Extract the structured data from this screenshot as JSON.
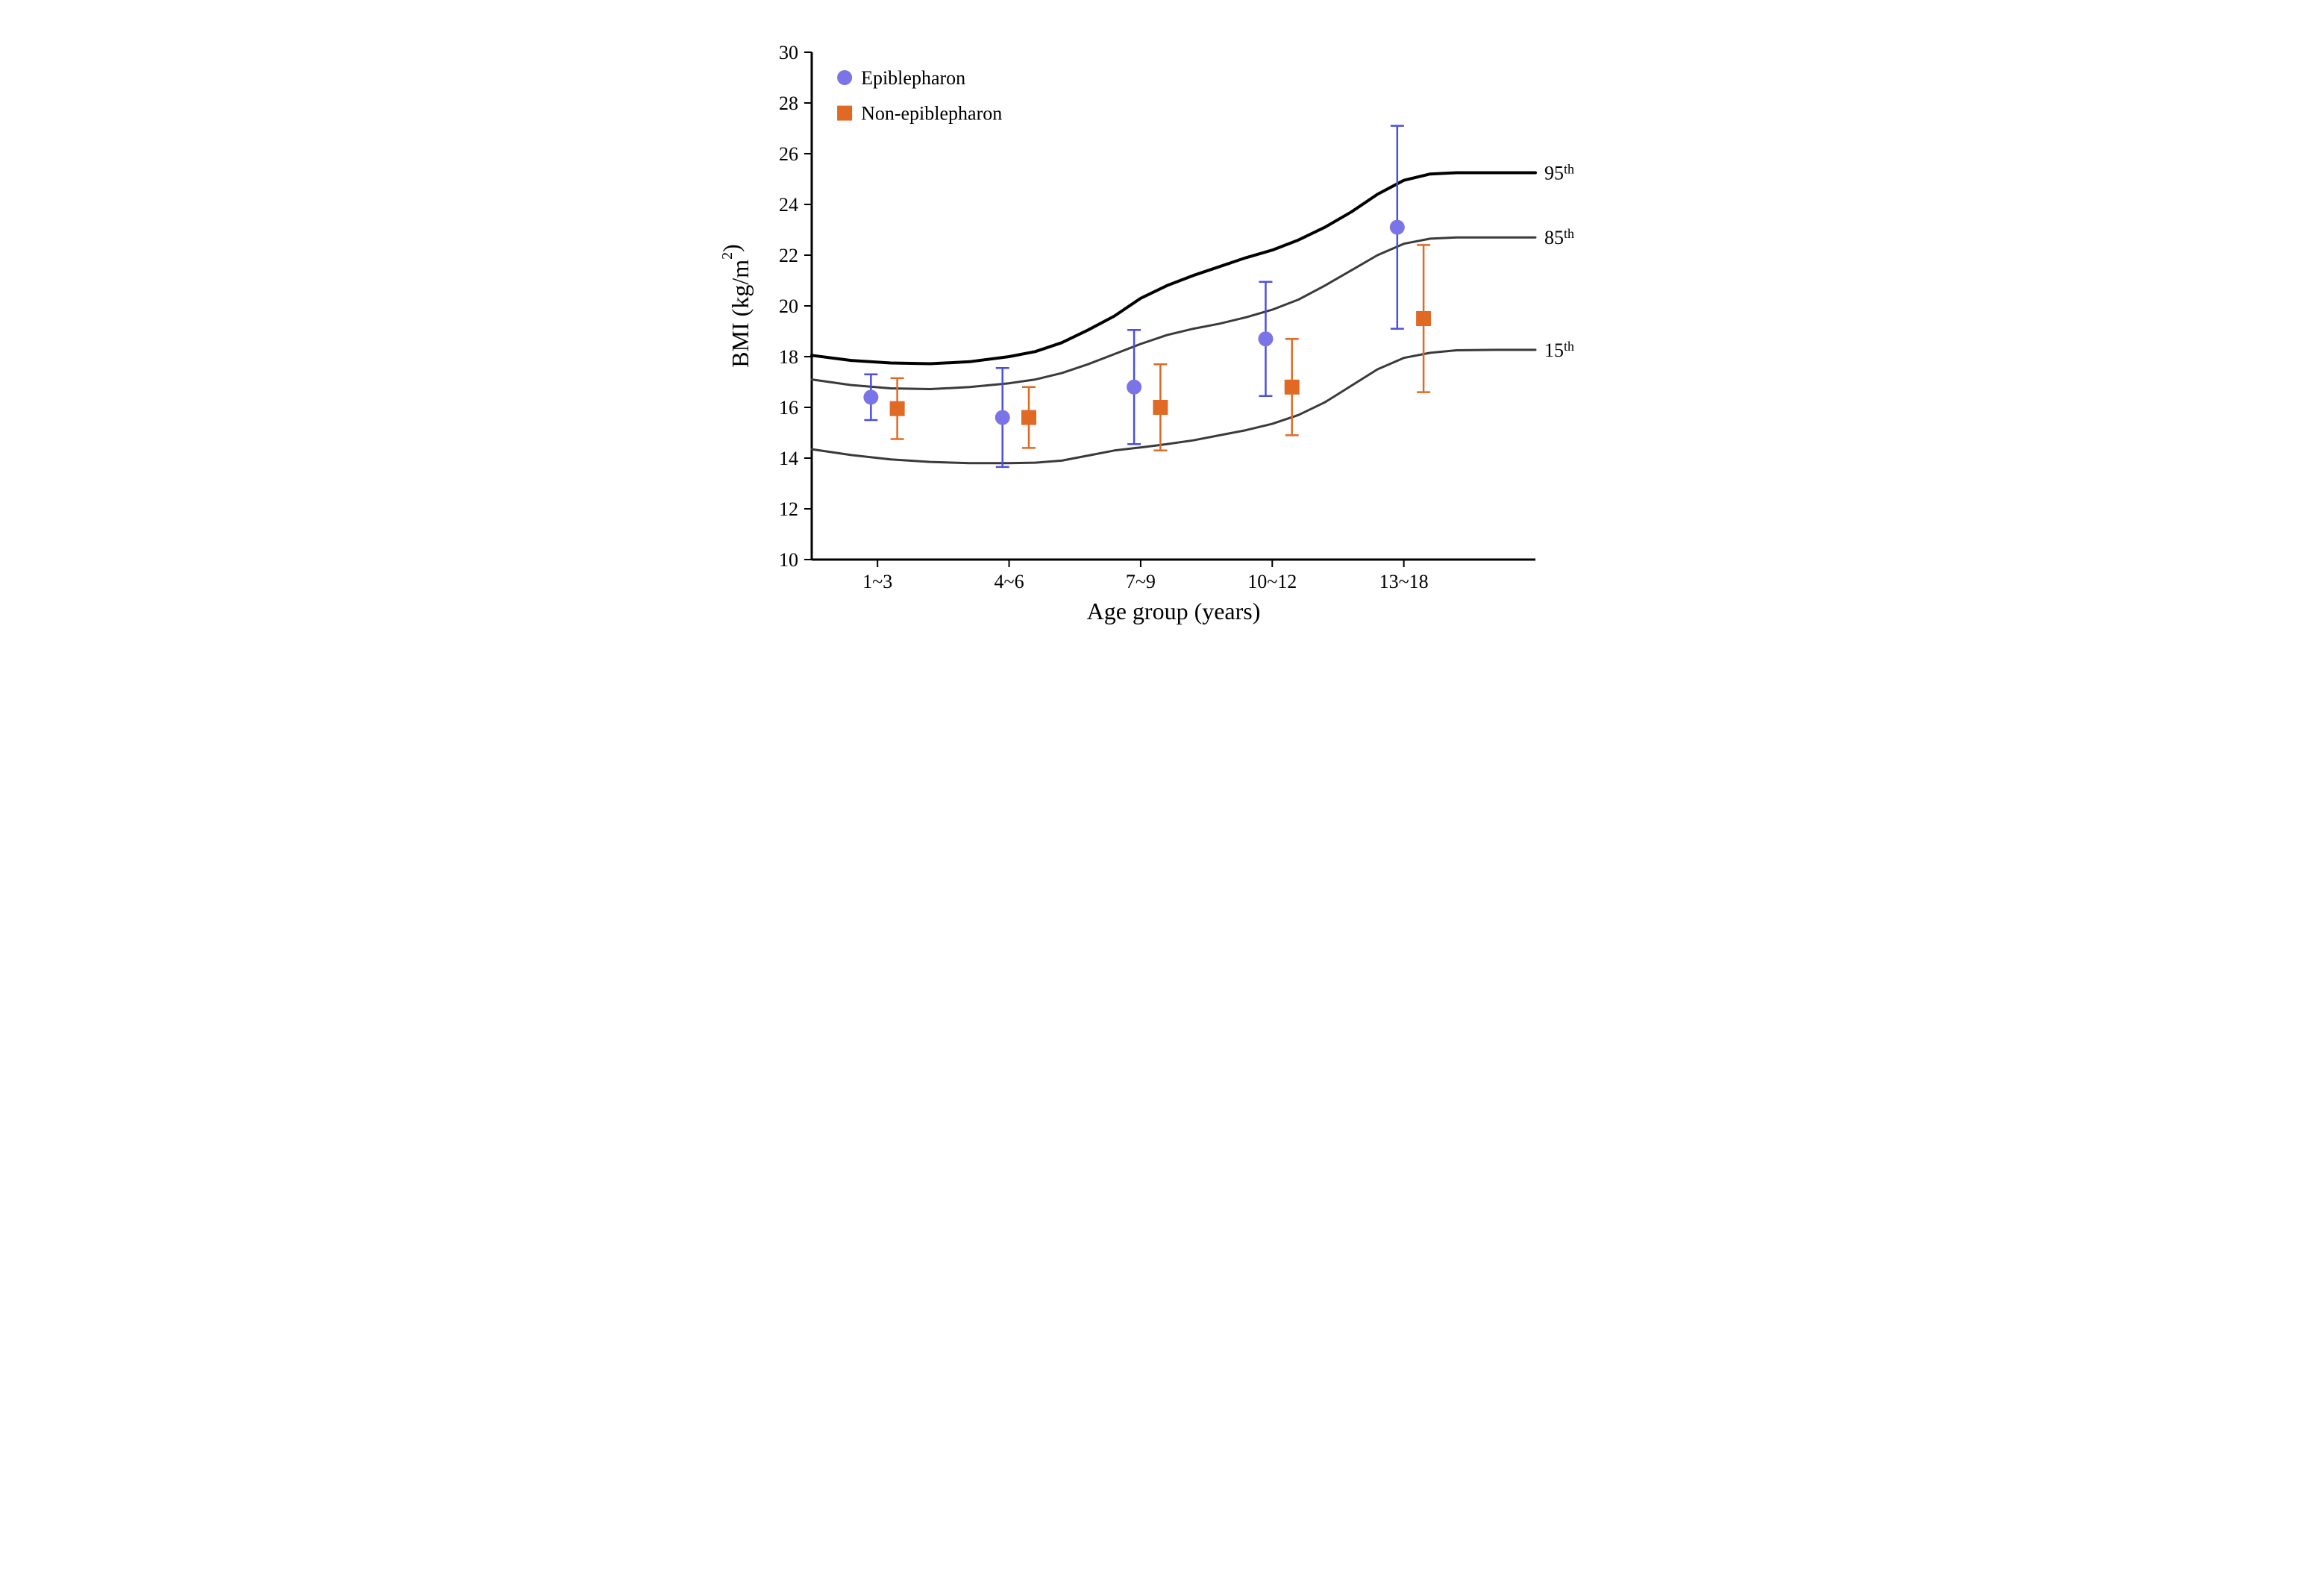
{
  "chart": {
    "type": "errorbar-with-percentile-curves",
    "background_color": "#ffffff",
    "axis_color": "#000000",
    "axis_linewidth": 3,
    "tick_length": 10,
    "font_family": "Times New Roman",
    "ylabel": "BMI (kg/m²)",
    "ylabel_html": "BMI (kg/m<sup>2</sup>)",
    "xlabel": "Age group (years)",
    "label_fontsize": 32,
    "tick_fontsize": 26,
    "ylim": [
      10,
      30
    ],
    "ytick_step": 2,
    "yticks": [
      10,
      12,
      14,
      16,
      18,
      20,
      22,
      24,
      26,
      28,
      30
    ],
    "x_categories": [
      "1~3",
      "4~6",
      "7~9",
      "10~12",
      "13~18"
    ],
    "x_positions": [
      1,
      2,
      3,
      4,
      5
    ],
    "xlim": [
      0.5,
      6.0
    ],
    "legend": {
      "x": 0.75,
      "items": [
        {
          "label": "Epiblepharon",
          "marker": "circle",
          "color": "#7b74e6"
        },
        {
          "label": "Non-epiblepharon",
          "marker": "square",
          "color": "#e06a24"
        }
      ]
    },
    "series": [
      {
        "name": "Epiblepharon",
        "marker": "circle",
        "marker_size": 10,
        "color": "#7b74e6",
        "line_color": "#4a4fe0",
        "linewidth": 2.5,
        "x_offset": -0.05,
        "points": [
          {
            "x": 1,
            "y": 16.4,
            "err": 0.9
          },
          {
            "x": 2,
            "y": 15.6,
            "err": 1.95
          },
          {
            "x": 3,
            "y": 16.8,
            "err": 2.25
          },
          {
            "x": 4,
            "y": 18.7,
            "err": 2.25
          },
          {
            "x": 5,
            "y": 23.1,
            "err": 4.0
          }
        ]
      },
      {
        "name": "Non-epiblepharon",
        "marker": "square",
        "marker_size": 10,
        "color": "#e06a24",
        "line_color": "#e06a24",
        "linewidth": 2.5,
        "x_offset": 0.15,
        "points": [
          {
            "x": 1,
            "y": 15.95,
            "err": 1.2
          },
          {
            "x": 2,
            "y": 15.6,
            "err": 1.2
          },
          {
            "x": 3,
            "y": 16.0,
            "err": 1.7
          },
          {
            "x": 4,
            "y": 16.8,
            "err": 1.9
          },
          {
            "x": 5,
            "y": 19.5,
            "err": 2.9
          }
        ]
      }
    ],
    "percentile_curves": [
      {
        "label": "95th",
        "label_raw": "95",
        "label_suffix": "th",
        "color": "#000000",
        "linewidth": 4,
        "points": [
          {
            "x": 0.5,
            "y": 18.05
          },
          {
            "x": 0.8,
            "y": 17.85
          },
          {
            "x": 1.1,
            "y": 17.75
          },
          {
            "x": 1.4,
            "y": 17.72
          },
          {
            "x": 1.7,
            "y": 17.8
          },
          {
            "x": 2.0,
            "y": 18.0
          },
          {
            "x": 2.2,
            "y": 18.2
          },
          {
            "x": 2.4,
            "y": 18.55
          },
          {
            "x": 2.6,
            "y": 19.05
          },
          {
            "x": 2.8,
            "y": 19.6
          },
          {
            "x": 3.0,
            "y": 20.3
          },
          {
            "x": 3.2,
            "y": 20.8
          },
          {
            "x": 3.4,
            "y": 21.2
          },
          {
            "x": 3.6,
            "y": 21.55
          },
          {
            "x": 3.8,
            "y": 21.9
          },
          {
            "x": 4.0,
            "y": 22.2
          },
          {
            "x": 4.2,
            "y": 22.6
          },
          {
            "x": 4.4,
            "y": 23.1
          },
          {
            "x": 4.6,
            "y": 23.7
          },
          {
            "x": 4.8,
            "y": 24.4
          },
          {
            "x": 5.0,
            "y": 24.95
          },
          {
            "x": 5.2,
            "y": 25.2
          },
          {
            "x": 5.4,
            "y": 25.25
          },
          {
            "x": 5.7,
            "y": 25.25
          },
          {
            "x": 6.0,
            "y": 25.25
          }
        ]
      },
      {
        "label": "85th",
        "label_raw": "85",
        "label_suffix": "th",
        "color": "#3a3a3a",
        "linewidth": 3,
        "points": [
          {
            "x": 0.5,
            "y": 17.1
          },
          {
            "x": 0.8,
            "y": 16.88
          },
          {
            "x": 1.1,
            "y": 16.75
          },
          {
            "x": 1.4,
            "y": 16.72
          },
          {
            "x": 1.7,
            "y": 16.8
          },
          {
            "x": 2.0,
            "y": 16.95
          },
          {
            "x": 2.2,
            "y": 17.1
          },
          {
            "x": 2.4,
            "y": 17.35
          },
          {
            "x": 2.6,
            "y": 17.7
          },
          {
            "x": 2.8,
            "y": 18.1
          },
          {
            "x": 3.0,
            "y": 18.5
          },
          {
            "x": 3.2,
            "y": 18.85
          },
          {
            "x": 3.4,
            "y": 19.1
          },
          {
            "x": 3.6,
            "y": 19.3
          },
          {
            "x": 3.8,
            "y": 19.55
          },
          {
            "x": 4.0,
            "y": 19.85
          },
          {
            "x": 4.2,
            "y": 20.25
          },
          {
            "x": 4.4,
            "y": 20.8
          },
          {
            "x": 4.6,
            "y": 21.4
          },
          {
            "x": 4.8,
            "y": 22.0
          },
          {
            "x": 5.0,
            "y": 22.45
          },
          {
            "x": 5.2,
            "y": 22.65
          },
          {
            "x": 5.4,
            "y": 22.7
          },
          {
            "x": 5.7,
            "y": 22.7
          },
          {
            "x": 6.0,
            "y": 22.7
          }
        ]
      },
      {
        "label": "15th",
        "label_raw": "15",
        "label_suffix": "th",
        "color": "#3a3a3a",
        "linewidth": 3,
        "points": [
          {
            "x": 0.5,
            "y": 14.35
          },
          {
            "x": 0.8,
            "y": 14.12
          },
          {
            "x": 1.1,
            "y": 13.95
          },
          {
            "x": 1.4,
            "y": 13.85
          },
          {
            "x": 1.7,
            "y": 13.8
          },
          {
            "x": 2.0,
            "y": 13.8
          },
          {
            "x": 2.2,
            "y": 13.82
          },
          {
            "x": 2.4,
            "y": 13.9
          },
          {
            "x": 2.6,
            "y": 14.1
          },
          {
            "x": 2.8,
            "y": 14.3
          },
          {
            "x": 3.0,
            "y": 14.42
          },
          {
            "x": 3.2,
            "y": 14.55
          },
          {
            "x": 3.4,
            "y": 14.7
          },
          {
            "x": 3.6,
            "y": 14.9
          },
          {
            "x": 3.8,
            "y": 15.1
          },
          {
            "x": 4.0,
            "y": 15.35
          },
          {
            "x": 4.2,
            "y": 15.7
          },
          {
            "x": 4.4,
            "y": 16.2
          },
          {
            "x": 4.6,
            "y": 16.85
          },
          {
            "x": 4.8,
            "y": 17.5
          },
          {
            "x": 5.0,
            "y": 17.95
          },
          {
            "x": 5.2,
            "y": 18.15
          },
          {
            "x": 5.4,
            "y": 18.25
          },
          {
            "x": 5.7,
            "y": 18.27
          },
          {
            "x": 6.0,
            "y": 18.27
          }
        ]
      }
    ]
  }
}
